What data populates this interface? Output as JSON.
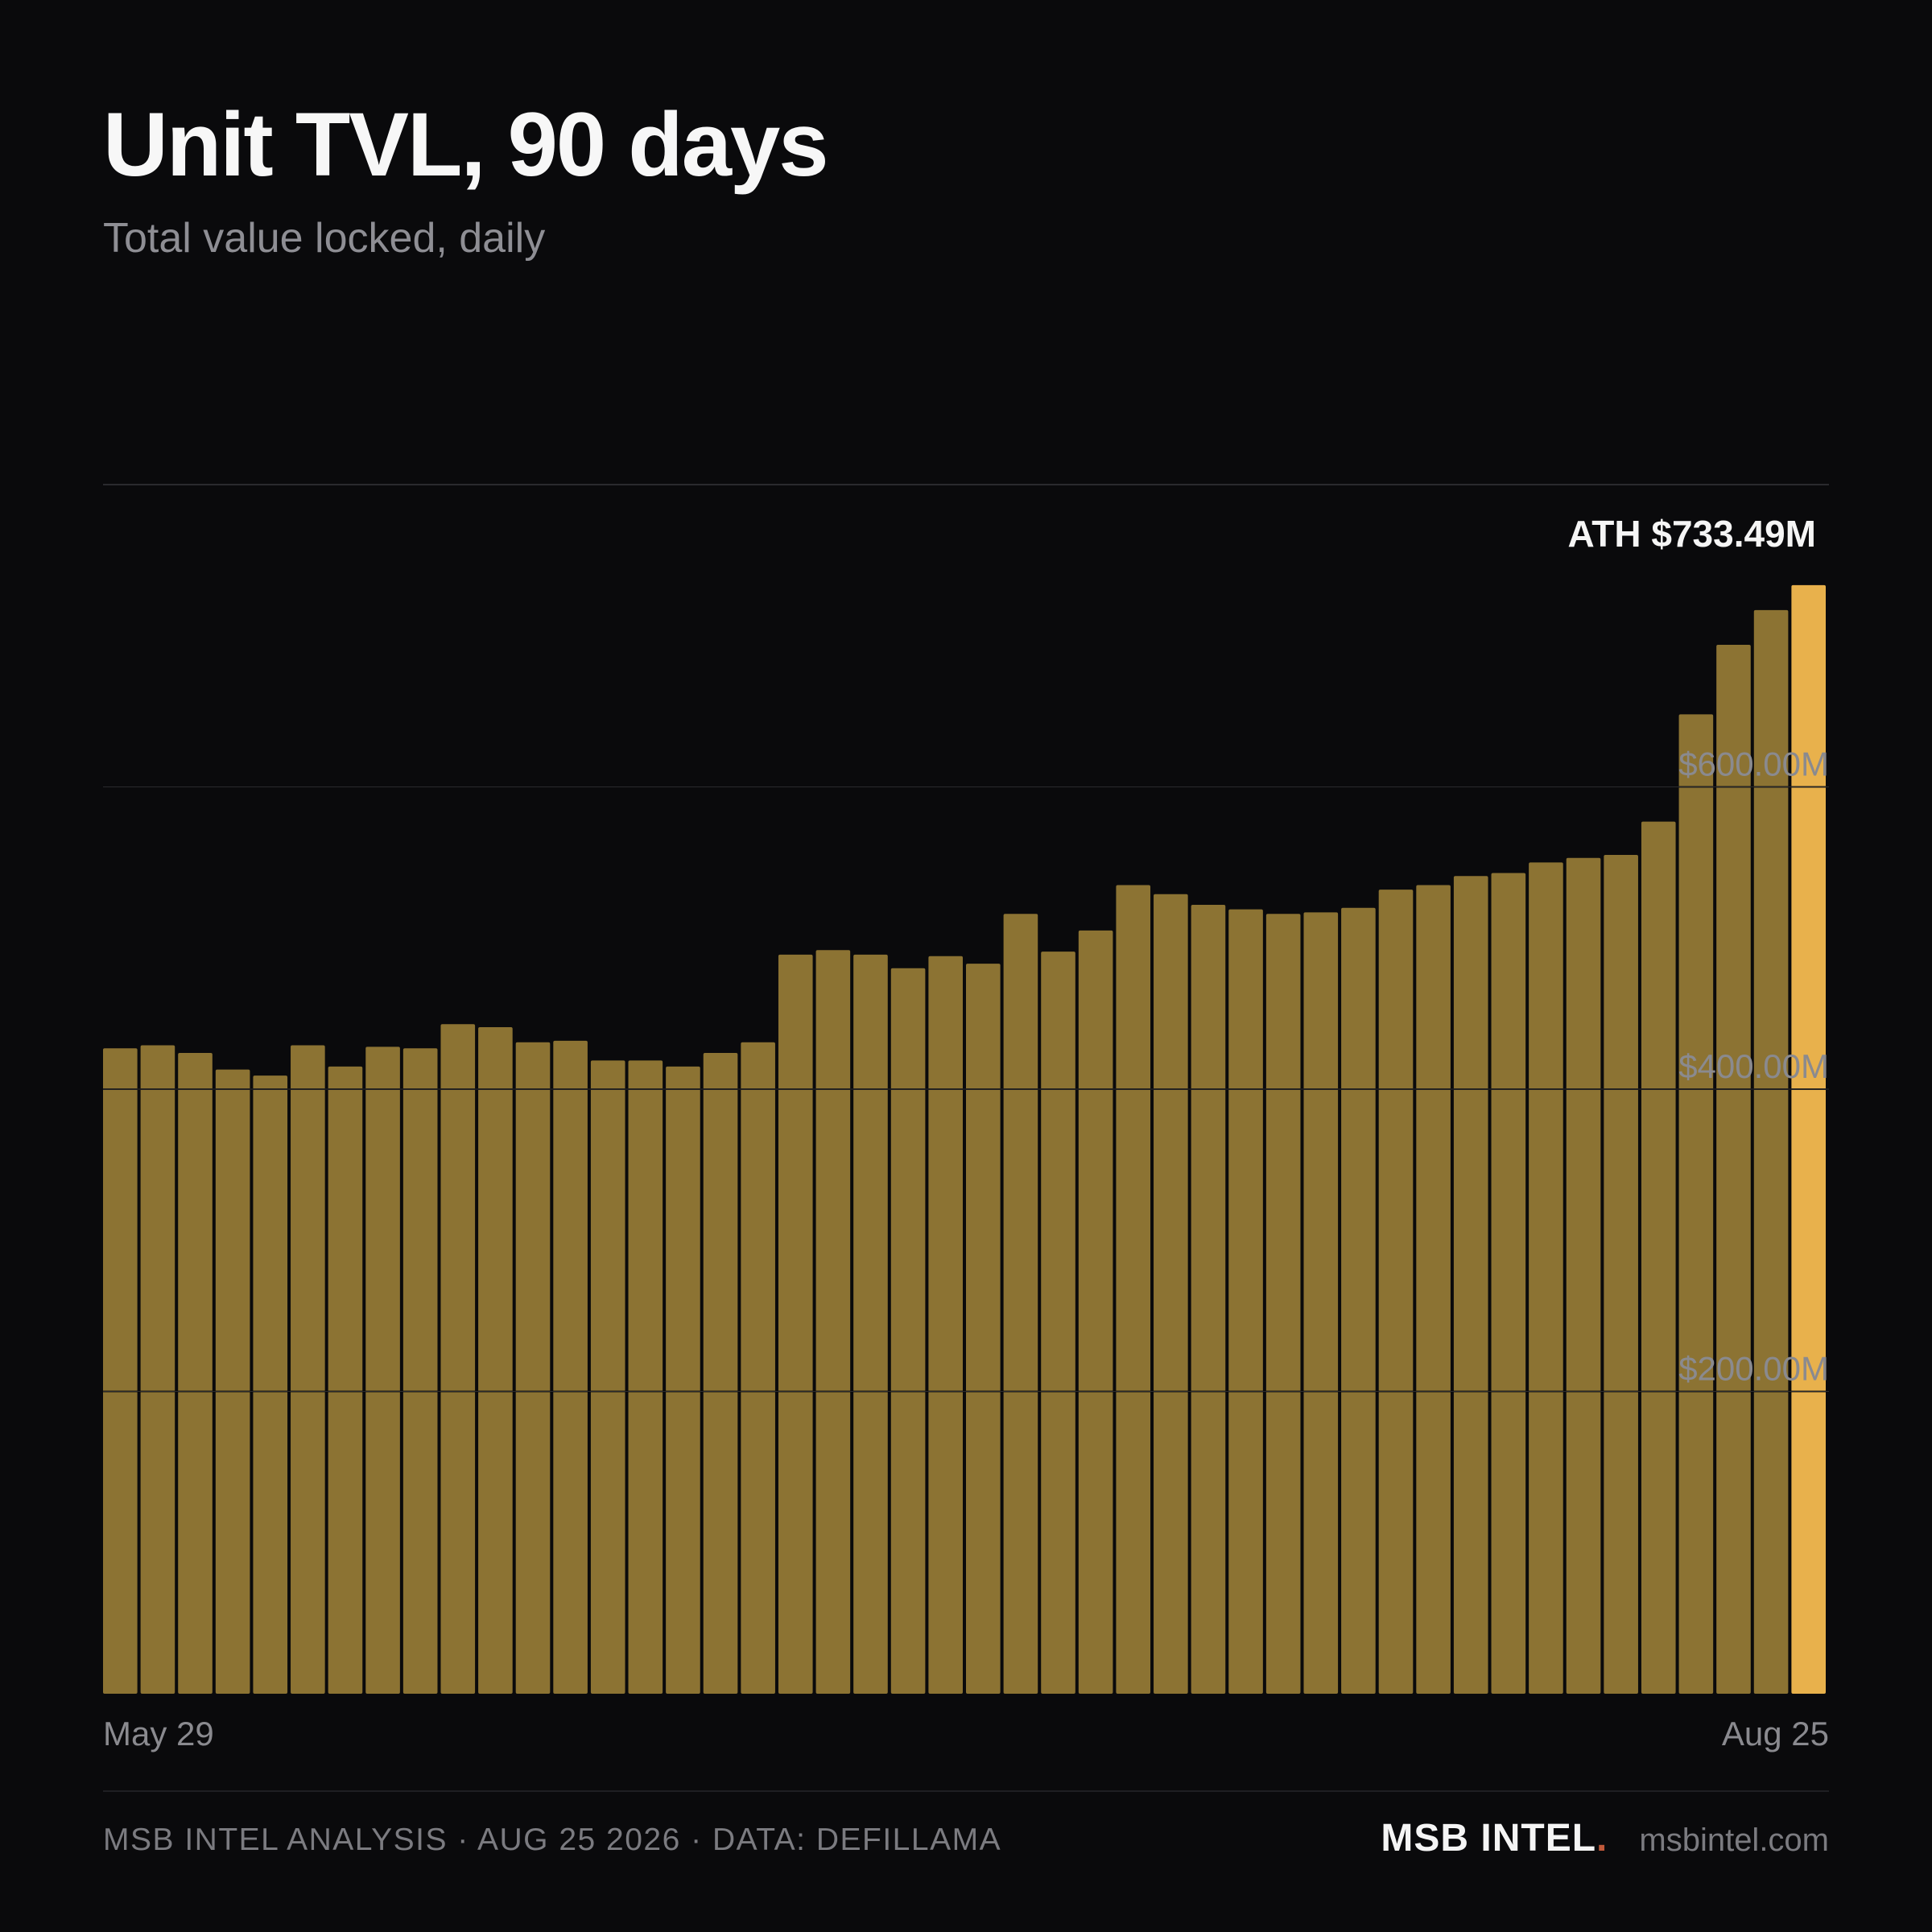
{
  "header": {
    "title": "Unit TVL, 90 days",
    "subtitle": "Total value locked, daily"
  },
  "chart_data": {
    "type": "bar",
    "title": "Unit TVL, 90 days",
    "subtitle": "Total value locked, daily",
    "x_start_label": "May 29",
    "x_end_label": "Aug 25",
    "y_ticks": [
      {
        "value": 200,
        "label": "$200.00M"
      },
      {
        "value": 400,
        "label": "$400.00M"
      },
      {
        "value": 600,
        "label": "$600.00M"
      }
    ],
    "ylim": [
      0,
      800
    ],
    "unit": "$M",
    "series": [
      {
        "values": [
          427,
          429,
          424,
          413,
          409,
          429,
          415,
          428,
          427,
          443,
          441,
          431,
          432,
          419,
          419,
          415,
          424,
          431,
          489,
          492,
          489,
          480,
          488,
          483,
          516,
          491,
          505,
          535,
          529,
          522,
          519,
          516,
          517,
          520,
          532,
          535,
          541,
          543,
          550,
          553,
          555,
          577,
          648,
          694,
          717,
          733.49
        ]
      }
    ],
    "highlight": {
      "index": 45,
      "label": "ATH $733.49M"
    },
    "colors": {
      "bar": "#8c7333",
      "bar_highlight": "#e8b14c",
      "grid": "#2a2a2e",
      "tick_label": "#8a8a8f",
      "annotation": "#f5f5f5"
    },
    "grid": true
  },
  "footer": {
    "source": "MSB INTEL ANALYSIS · AUG 25 2026 · DATA: DEFILLAMA",
    "brand": "MSB INTEL",
    "brand_dot": ".",
    "site": "msbintel.com"
  }
}
